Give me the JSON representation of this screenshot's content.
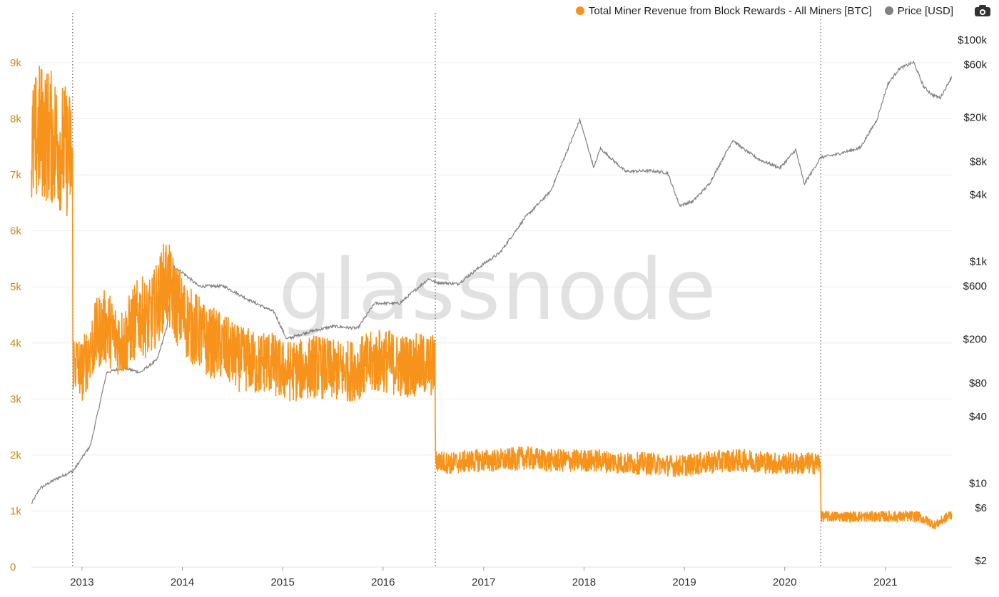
{
  "legend": {
    "series1_label": "Total Miner Revenue from Block Rewards - All Miners [BTC]",
    "series1_color": "#f7931a",
    "series2_label": "Price [USD]",
    "series2_color": "#808080"
  },
  "toolbar": {
    "camera_icon": "camera-icon"
  },
  "watermark": "glassnode",
  "chart_data": {
    "type": "line",
    "title": "",
    "xlabel": "",
    "ylabel_left": "",
    "ylabel_right": "",
    "x_range": [
      "2012-07-01",
      "2021-08-31"
    ],
    "x_ticks": [
      "2013",
      "2014",
      "2015",
      "2016",
      "2017",
      "2018",
      "2019",
      "2020",
      "2021"
    ],
    "y_left": {
      "ylim": [
        0,
        9500
      ],
      "ticks": [
        0,
        1000,
        2000,
        3000,
        4000,
        5000,
        6000,
        7000,
        8000,
        9000
      ],
      "tick_labels": [
        "0",
        "1k",
        "2k",
        "3k",
        "4k",
        "5k",
        "6k",
        "7k",
        "8k",
        "9k"
      ]
    },
    "y_right": {
      "scale": "log",
      "ylim": [
        2,
        100000
      ],
      "ticks": [
        2,
        6,
        10,
        40,
        80,
        200,
        600,
        1000,
        4000,
        8000,
        20000,
        60000,
        100000
      ],
      "tick_labels": [
        "$2",
        "$6",
        "$10",
        "$40",
        "$80",
        "$200",
        "$600",
        "$1k",
        "$4k",
        "$8k",
        "$20k",
        "$60k",
        "$100k"
      ]
    },
    "halving_markers": [
      "2012-11-28",
      "2016-07-09",
      "2020-05-11"
    ],
    "grid": true,
    "legend_position": "top-right",
    "series": [
      {
        "name": "Total Miner Revenue from Block Rewards - All Miners [BTC]",
        "color": "#f7931a",
        "axis": "left",
        "points": [
          [
            "2012-07-01",
            7400
          ],
          [
            "2012-08-01",
            7800
          ],
          [
            "2012-09-01",
            7700
          ],
          [
            "2012-10-01",
            7600
          ],
          [
            "2012-11-27",
            7300
          ],
          [
            "2012-11-29",
            3700
          ],
          [
            "2013-01-01",
            3500
          ],
          [
            "2013-02-01",
            3900
          ],
          [
            "2013-03-01",
            4200
          ],
          [
            "2013-04-01",
            4300
          ],
          [
            "2013-05-01",
            4100
          ],
          [
            "2013-06-01",
            4000
          ],
          [
            "2013-07-01",
            4300
          ],
          [
            "2013-08-01",
            4500
          ],
          [
            "2013-09-01",
            4400
          ],
          [
            "2013-10-01",
            4700
          ],
          [
            "2013-11-01",
            5100
          ],
          [
            "2013-12-01",
            4800
          ],
          [
            "2014-01-01",
            4500
          ],
          [
            "2014-02-01",
            4300
          ],
          [
            "2014-03-01",
            4200
          ],
          [
            "2014-04-01",
            4000
          ],
          [
            "2014-05-01",
            4000
          ],
          [
            "2014-06-01",
            3900
          ],
          [
            "2014-07-01",
            3800
          ],
          [
            "2014-08-01",
            3700
          ],
          [
            "2014-09-01",
            3700
          ],
          [
            "2014-10-01",
            3600
          ],
          [
            "2014-11-01",
            3700
          ],
          [
            "2014-12-01",
            3600
          ],
          [
            "2015-01-01",
            3500
          ],
          [
            "2015-03-01",
            3500
          ],
          [
            "2015-05-01",
            3600
          ],
          [
            "2015-07-01",
            3500
          ],
          [
            "2015-09-01",
            3500
          ],
          [
            "2015-11-01",
            3600
          ],
          [
            "2016-01-01",
            3700
          ],
          [
            "2016-03-01",
            3600
          ],
          [
            "2016-05-01",
            3600
          ],
          [
            "2016-07-08",
            3600
          ],
          [
            "2016-07-10",
            1900
          ],
          [
            "2016-09-01",
            1850
          ],
          [
            "2016-12-01",
            1900
          ],
          [
            "2017-03-01",
            1900
          ],
          [
            "2017-06-01",
            1950
          ],
          [
            "2017-09-01",
            1900
          ],
          [
            "2017-12-01",
            1900
          ],
          [
            "2018-03-01",
            1900
          ],
          [
            "2018-06-01",
            1850
          ],
          [
            "2018-09-01",
            1850
          ],
          [
            "2018-12-01",
            1800
          ],
          [
            "2019-03-01",
            1850
          ],
          [
            "2019-06-01",
            1900
          ],
          [
            "2019-09-01",
            1900
          ],
          [
            "2019-12-01",
            1850
          ],
          [
            "2020-03-01",
            1850
          ],
          [
            "2020-05-10",
            1850
          ],
          [
            "2020-05-12",
            900
          ],
          [
            "2020-08-01",
            900
          ],
          [
            "2020-11-01",
            900
          ],
          [
            "2021-02-01",
            900
          ],
          [
            "2021-05-01",
            900
          ],
          [
            "2021-07-01",
            750
          ],
          [
            "2021-08-31",
            950
          ]
        ]
      },
      {
        "name": "Price [USD]",
        "color": "#808080",
        "axis": "right",
        "points": [
          [
            "2012-07-01",
            6.5
          ],
          [
            "2012-08-01",
            9
          ],
          [
            "2012-10-01",
            11
          ],
          [
            "2012-12-01",
            13
          ],
          [
            "2013-02-01",
            22
          ],
          [
            "2013-04-01",
            100
          ],
          [
            "2013-06-01",
            110
          ],
          [
            "2013-08-01",
            100
          ],
          [
            "2013-10-01",
            130
          ],
          [
            "2013-11-05",
            250
          ],
          [
            "2013-12-01",
            900
          ],
          [
            "2014-01-01",
            800
          ],
          [
            "2014-03-01",
            600
          ],
          [
            "2014-06-01",
            600
          ],
          [
            "2014-09-01",
            450
          ],
          [
            "2014-12-01",
            350
          ],
          [
            "2015-01-15",
            200
          ],
          [
            "2015-04-01",
            230
          ],
          [
            "2015-07-01",
            260
          ],
          [
            "2015-10-01",
            250
          ],
          [
            "2015-12-01",
            420
          ],
          [
            "2016-03-01",
            420
          ],
          [
            "2016-06-15",
            700
          ],
          [
            "2016-07-10",
            650
          ],
          [
            "2016-10-01",
            630
          ],
          [
            "2016-12-31",
            950
          ],
          [
            "2017-03-01",
            1200
          ],
          [
            "2017-06-01",
            2500
          ],
          [
            "2017-09-01",
            4300
          ],
          [
            "2017-12-17",
            19000
          ],
          [
            "2018-02-06",
            7000
          ],
          [
            "2018-03-01",
            10500
          ],
          [
            "2018-06-01",
            6500
          ],
          [
            "2018-09-01",
            6600
          ],
          [
            "2018-11-01",
            6300
          ],
          [
            "2018-12-15",
            3200
          ],
          [
            "2019-02-01",
            3500
          ],
          [
            "2019-04-01",
            5000
          ],
          [
            "2019-06-26",
            12500
          ],
          [
            "2019-08-01",
            10500
          ],
          [
            "2019-10-01",
            8300
          ],
          [
            "2019-12-15",
            7000
          ],
          [
            "2020-02-10",
            10200
          ],
          [
            "2020-03-12",
            5000
          ],
          [
            "2020-05-11",
            8700
          ],
          [
            "2020-07-01",
            9200
          ],
          [
            "2020-10-01",
            10600
          ],
          [
            "2020-12-01",
            19000
          ],
          [
            "2021-01-10",
            40000
          ],
          [
            "2021-02-20",
            55000
          ],
          [
            "2021-04-14",
            63000
          ],
          [
            "2021-05-20",
            38000
          ],
          [
            "2021-06-20",
            32000
          ],
          [
            "2021-07-20",
            30000
          ],
          [
            "2021-08-31",
            47000
          ]
        ]
      }
    ]
  }
}
